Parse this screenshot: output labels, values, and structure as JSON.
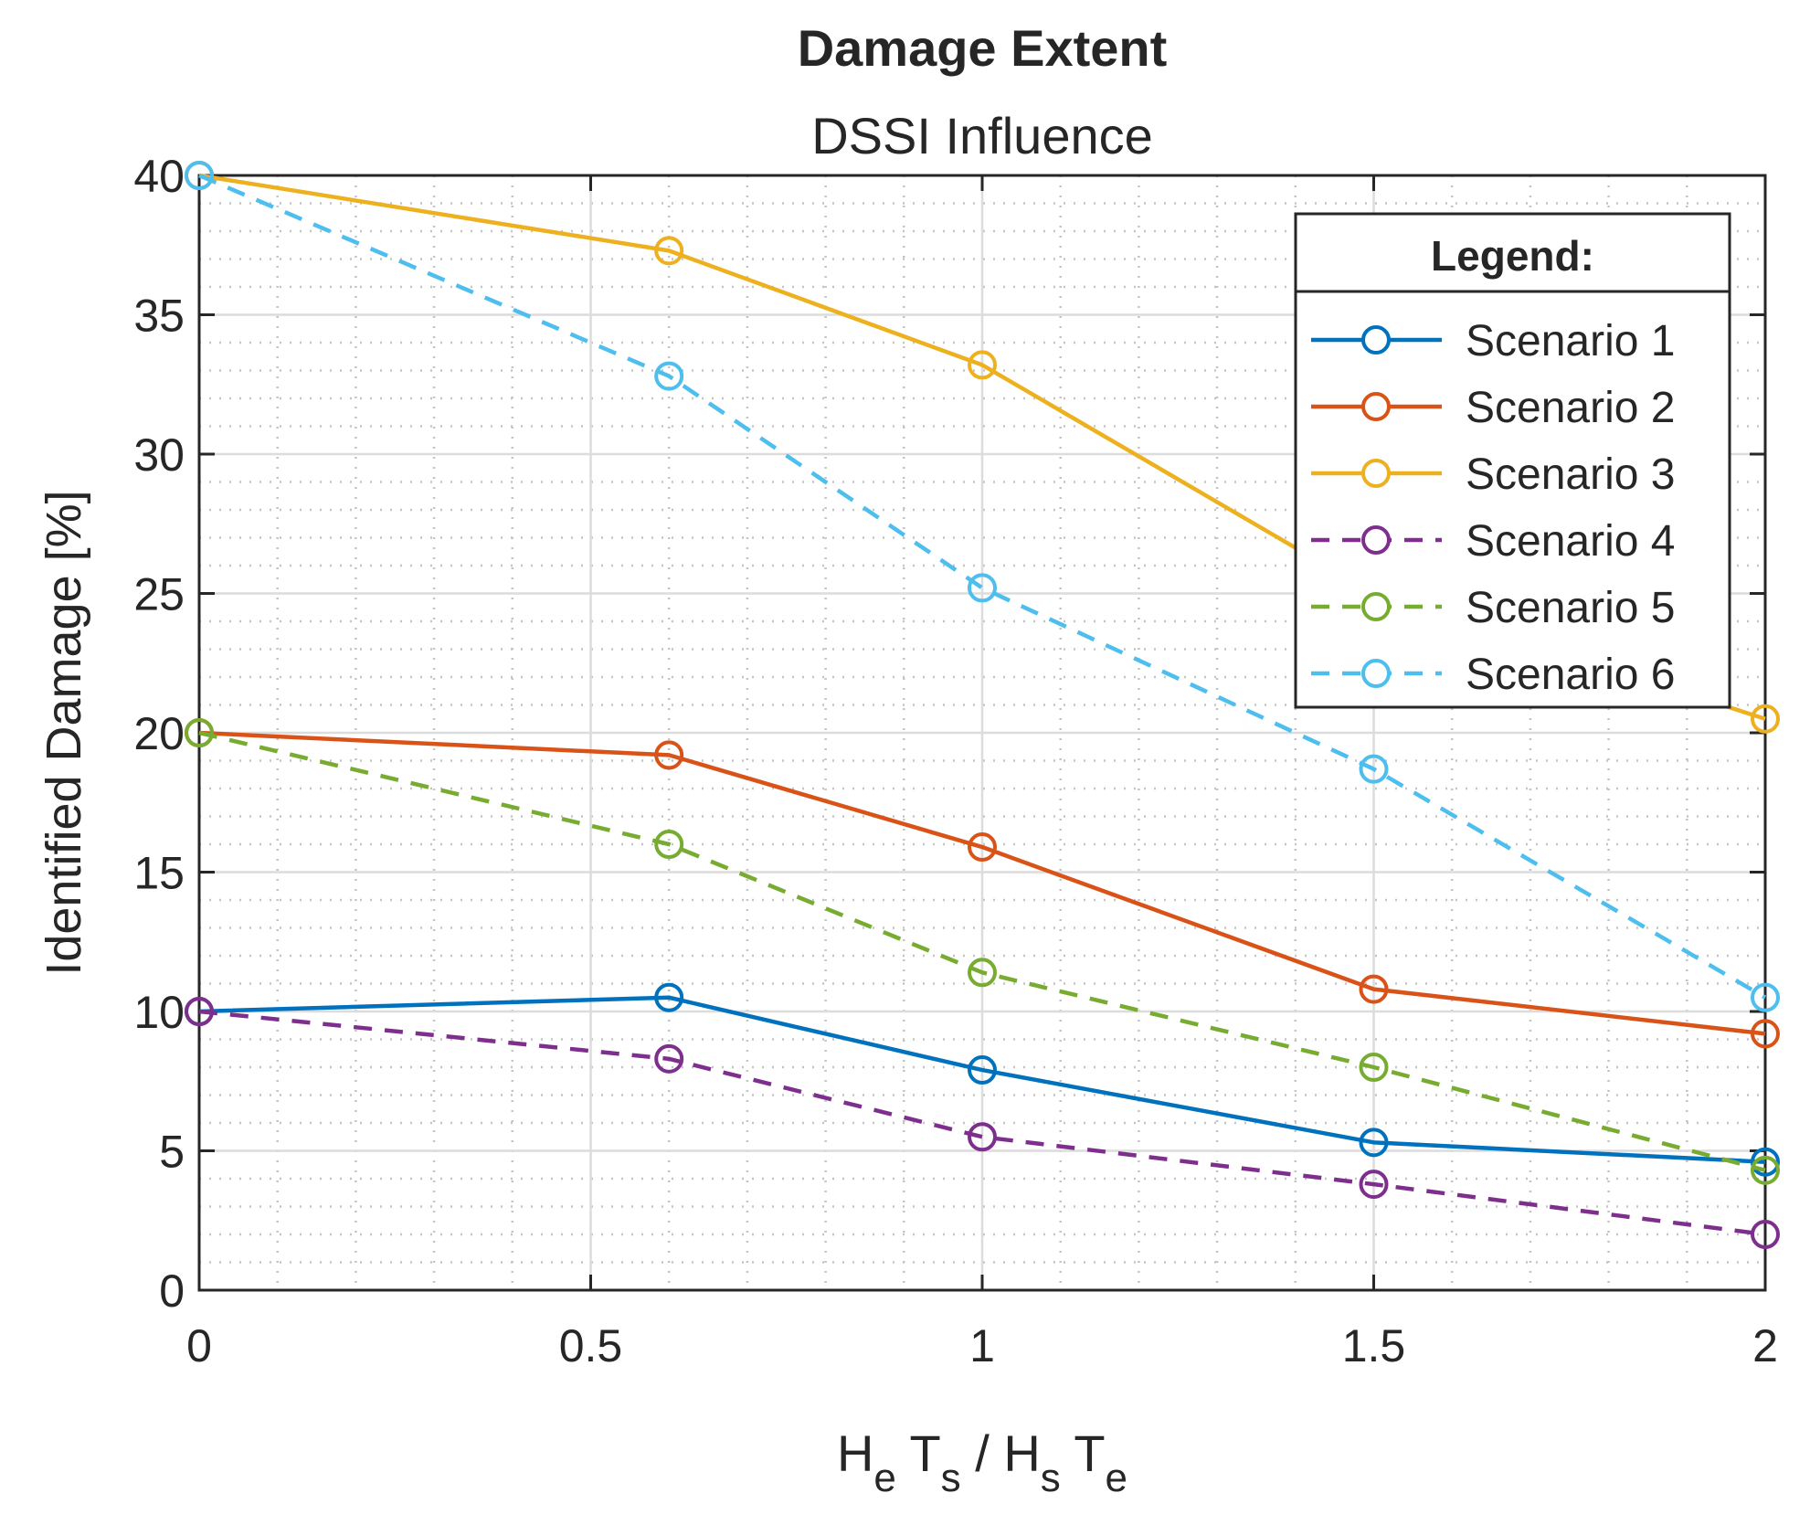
{
  "chart_data": {
    "type": "line",
    "title": "Damage Extent",
    "subtitle": "DSSI Influence",
    "xlabel": {
      "parts": [
        {
          "text": "H",
          "sub": false
        },
        {
          "text": "e",
          "sub": true
        },
        {
          "text": " T",
          "sub": false
        },
        {
          "text": "s",
          "sub": true
        },
        {
          "text": " / H",
          "sub": false
        },
        {
          "text": "s",
          "sub": true
        },
        {
          "text": " T",
          "sub": false
        },
        {
          "text": "e",
          "sub": true
        }
      ]
    },
    "ylabel": "Identified Damage [%]",
    "xlim": [
      0,
      2
    ],
    "ylim": [
      0,
      40
    ],
    "xticks": [
      0,
      0.5,
      1,
      1.5,
      2
    ],
    "xtick_labels": [
      "0",
      "0.5",
      "1",
      "1.5",
      "2"
    ],
    "yticks": [
      0,
      5,
      10,
      15,
      20,
      25,
      30,
      35,
      40
    ],
    "ytick_labels": [
      "0",
      "5",
      "10",
      "15",
      "20",
      "25",
      "30",
      "35",
      "40"
    ],
    "grid": true,
    "minor_grid": true,
    "legend": {
      "title": "Legend:",
      "position": "top-right"
    },
    "x": [
      0,
      0.6,
      1,
      1.5,
      2
    ],
    "series": [
      {
        "name": "Scenario 1",
        "values": [
          10,
          10.5,
          7.9,
          5.3,
          4.6
        ],
        "color": "#0072BD",
        "dash": "solid"
      },
      {
        "name": "Scenario 2",
        "values": [
          20,
          19.2,
          15.9,
          10.8,
          9.2
        ],
        "color": "#D95319",
        "dash": "solid"
      },
      {
        "name": "Scenario 3",
        "values": [
          40,
          37.3,
          33.2,
          25,
          20.5
        ],
        "color": "#EDB120",
        "dash": "solid"
      },
      {
        "name": "Scenario 4",
        "values": [
          10,
          8.3,
          5.5,
          3.8,
          2
        ],
        "color": "#7E2F8E",
        "dash": "dashed"
      },
      {
        "name": "Scenario 5",
        "values": [
          20,
          16,
          11.4,
          8,
          4.3
        ],
        "color": "#77AC30",
        "dash": "dashed"
      },
      {
        "name": "Scenario 6",
        "values": [
          40,
          32.8,
          25.2,
          18.7,
          10.5
        ],
        "color": "#4DBEEE",
        "dash": "dashed"
      }
    ]
  }
}
